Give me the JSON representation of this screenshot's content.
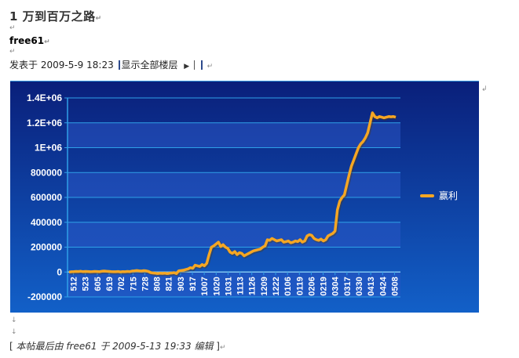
{
  "post": {
    "title": "1 万到百万之路",
    "author": "free61",
    "posted_label": "发表于",
    "posted_date": "2009-5-9 18:23",
    "show_all_label": "显示全部楼层",
    "edit_note": "本帖最后由 free61 于 2009-5-13 19:33 编辑",
    "edit_open": "[",
    "edit_close": "]"
  },
  "marks": {
    "para": "↵",
    "down": "↓",
    "anchor": "↲"
  },
  "colors": {
    "chart_bg_top": "#0a1f7a",
    "chart_bg_bottom": "#1260c8",
    "band_light": "#2a56c4",
    "gridline": "#2fa0e8",
    "series": "#f5a623",
    "axis_text": "#ffffff"
  },
  "chart_data": {
    "type": "line",
    "title": "",
    "xlabel": "",
    "ylabel": "",
    "ylim": [
      -200000,
      1400000
    ],
    "yticks": [
      {
        "v": -200000,
        "label": "-200000"
      },
      {
        "v": 0,
        "label": "0"
      },
      {
        "v": 200000,
        "label": "200000"
      },
      {
        "v": 400000,
        "label": "400000"
      },
      {
        "v": 600000,
        "label": "600000"
      },
      {
        "v": 800000,
        "label": "800000"
      },
      {
        "v": 1000000,
        "label": "1E+06"
      },
      {
        "v": 1200000,
        "label": "1.2E+06"
      },
      {
        "v": 1400000,
        "label": "1.4E+06"
      }
    ],
    "xtick_labels": [
      "512",
      "523",
      "605",
      "619",
      "702",
      "715",
      "728",
      "808",
      "821",
      "903",
      "917",
      "1007",
      "1020",
      "1031",
      "1113",
      "1126",
      "1209",
      "1222",
      "0106",
      "0119",
      "0206",
      "0219",
      "0304",
      "0317",
      "0330",
      "0413",
      "0424",
      "0508"
    ],
    "grid": true,
    "legend_position": "right",
    "series": [
      {
        "name": "赢利",
        "x": [
          0,
          1,
          2,
          3,
          4,
          5,
          6,
          7,
          8,
          9,
          10,
          11,
          12,
          13,
          14,
          15,
          16,
          17,
          18,
          19,
          20,
          21,
          22,
          23,
          24,
          25,
          26,
          27,
          28,
          29,
          30,
          31,
          32,
          33,
          34,
          35,
          36,
          37,
          38,
          39,
          40,
          41,
          42,
          43,
          44,
          45,
          46,
          47,
          48,
          49,
          50,
          51,
          52,
          53,
          54,
          55,
          56,
          57,
          58,
          59,
          60,
          61,
          62,
          63,
          64,
          65,
          66,
          67,
          68,
          69,
          70,
          71,
          72,
          73,
          74,
          75,
          76,
          77,
          78,
          79,
          80,
          81,
          82,
          83,
          84,
          85,
          86,
          87,
          88,
          89,
          90,
          91,
          92,
          93,
          94,
          95,
          96,
          97,
          98,
          99,
          100,
          101,
          102,
          103,
          104,
          105,
          106,
          107,
          108,
          109,
          110,
          111,
          112,
          113,
          114,
          115,
          116,
          117,
          118,
          119,
          120,
          121,
          122,
          123,
          124,
          125,
          126,
          127,
          128,
          129,
          130,
          131,
          132,
          133,
          134,
          135,
          136,
          137,
          138,
          139,
          140
        ],
        "values": [
          0,
          2000,
          3000,
          5000,
          4000,
          6000,
          3000,
          5000,
          4000,
          2000,
          3000,
          5000,
          4000,
          2000,
          6000,
          8000,
          6000,
          5000,
          3000,
          2000,
          2000,
          4000,
          1000,
          3000,
          2000,
          5000,
          3000,
          8000,
          10000,
          12000,
          10000,
          8000,
          11000,
          9000,
          5000,
          -5000,
          -8000,
          -10000,
          -12000,
          -10000,
          -11000,
          -9000,
          -13000,
          -10000,
          -8000,
          -5000,
          -12000,
          10000,
          12000,
          15000,
          20000,
          25000,
          35000,
          30000,
          55000,
          50000,
          45000,
          60000,
          50000,
          70000,
          140000,
          200000,
          210000,
          225000,
          240000,
          205000,
          220000,
          200000,
          190000,
          160000,
          150000,
          165000,
          140000,
          155000,
          150000,
          130000,
          140000,
          150000,
          160000,
          170000,
          175000,
          180000,
          185000,
          200000,
          210000,
          260000,
          255000,
          270000,
          260000,
          250000,
          255000,
          260000,
          240000,
          245000,
          250000,
          235000,
          240000,
          250000,
          245000,
          260000,
          240000,
          250000,
          290000,
          300000,
          295000,
          270000,
          260000,
          255000,
          265000,
          250000,
          260000,
          290000,
          300000,
          310000,
          330000,
          500000,
          570000,
          600000,
          620000,
          700000,
          780000,
          850000,
          900000,
          950000,
          1000000,
          1030000,
          1050000,
          1080000,
          1120000,
          1200000,
          1280000,
          1250000,
          1240000,
          1250000,
          1245000,
          1240000,
          1245000,
          1250000,
          1248000,
          1250000,
          1245000
        ]
      }
    ]
  }
}
